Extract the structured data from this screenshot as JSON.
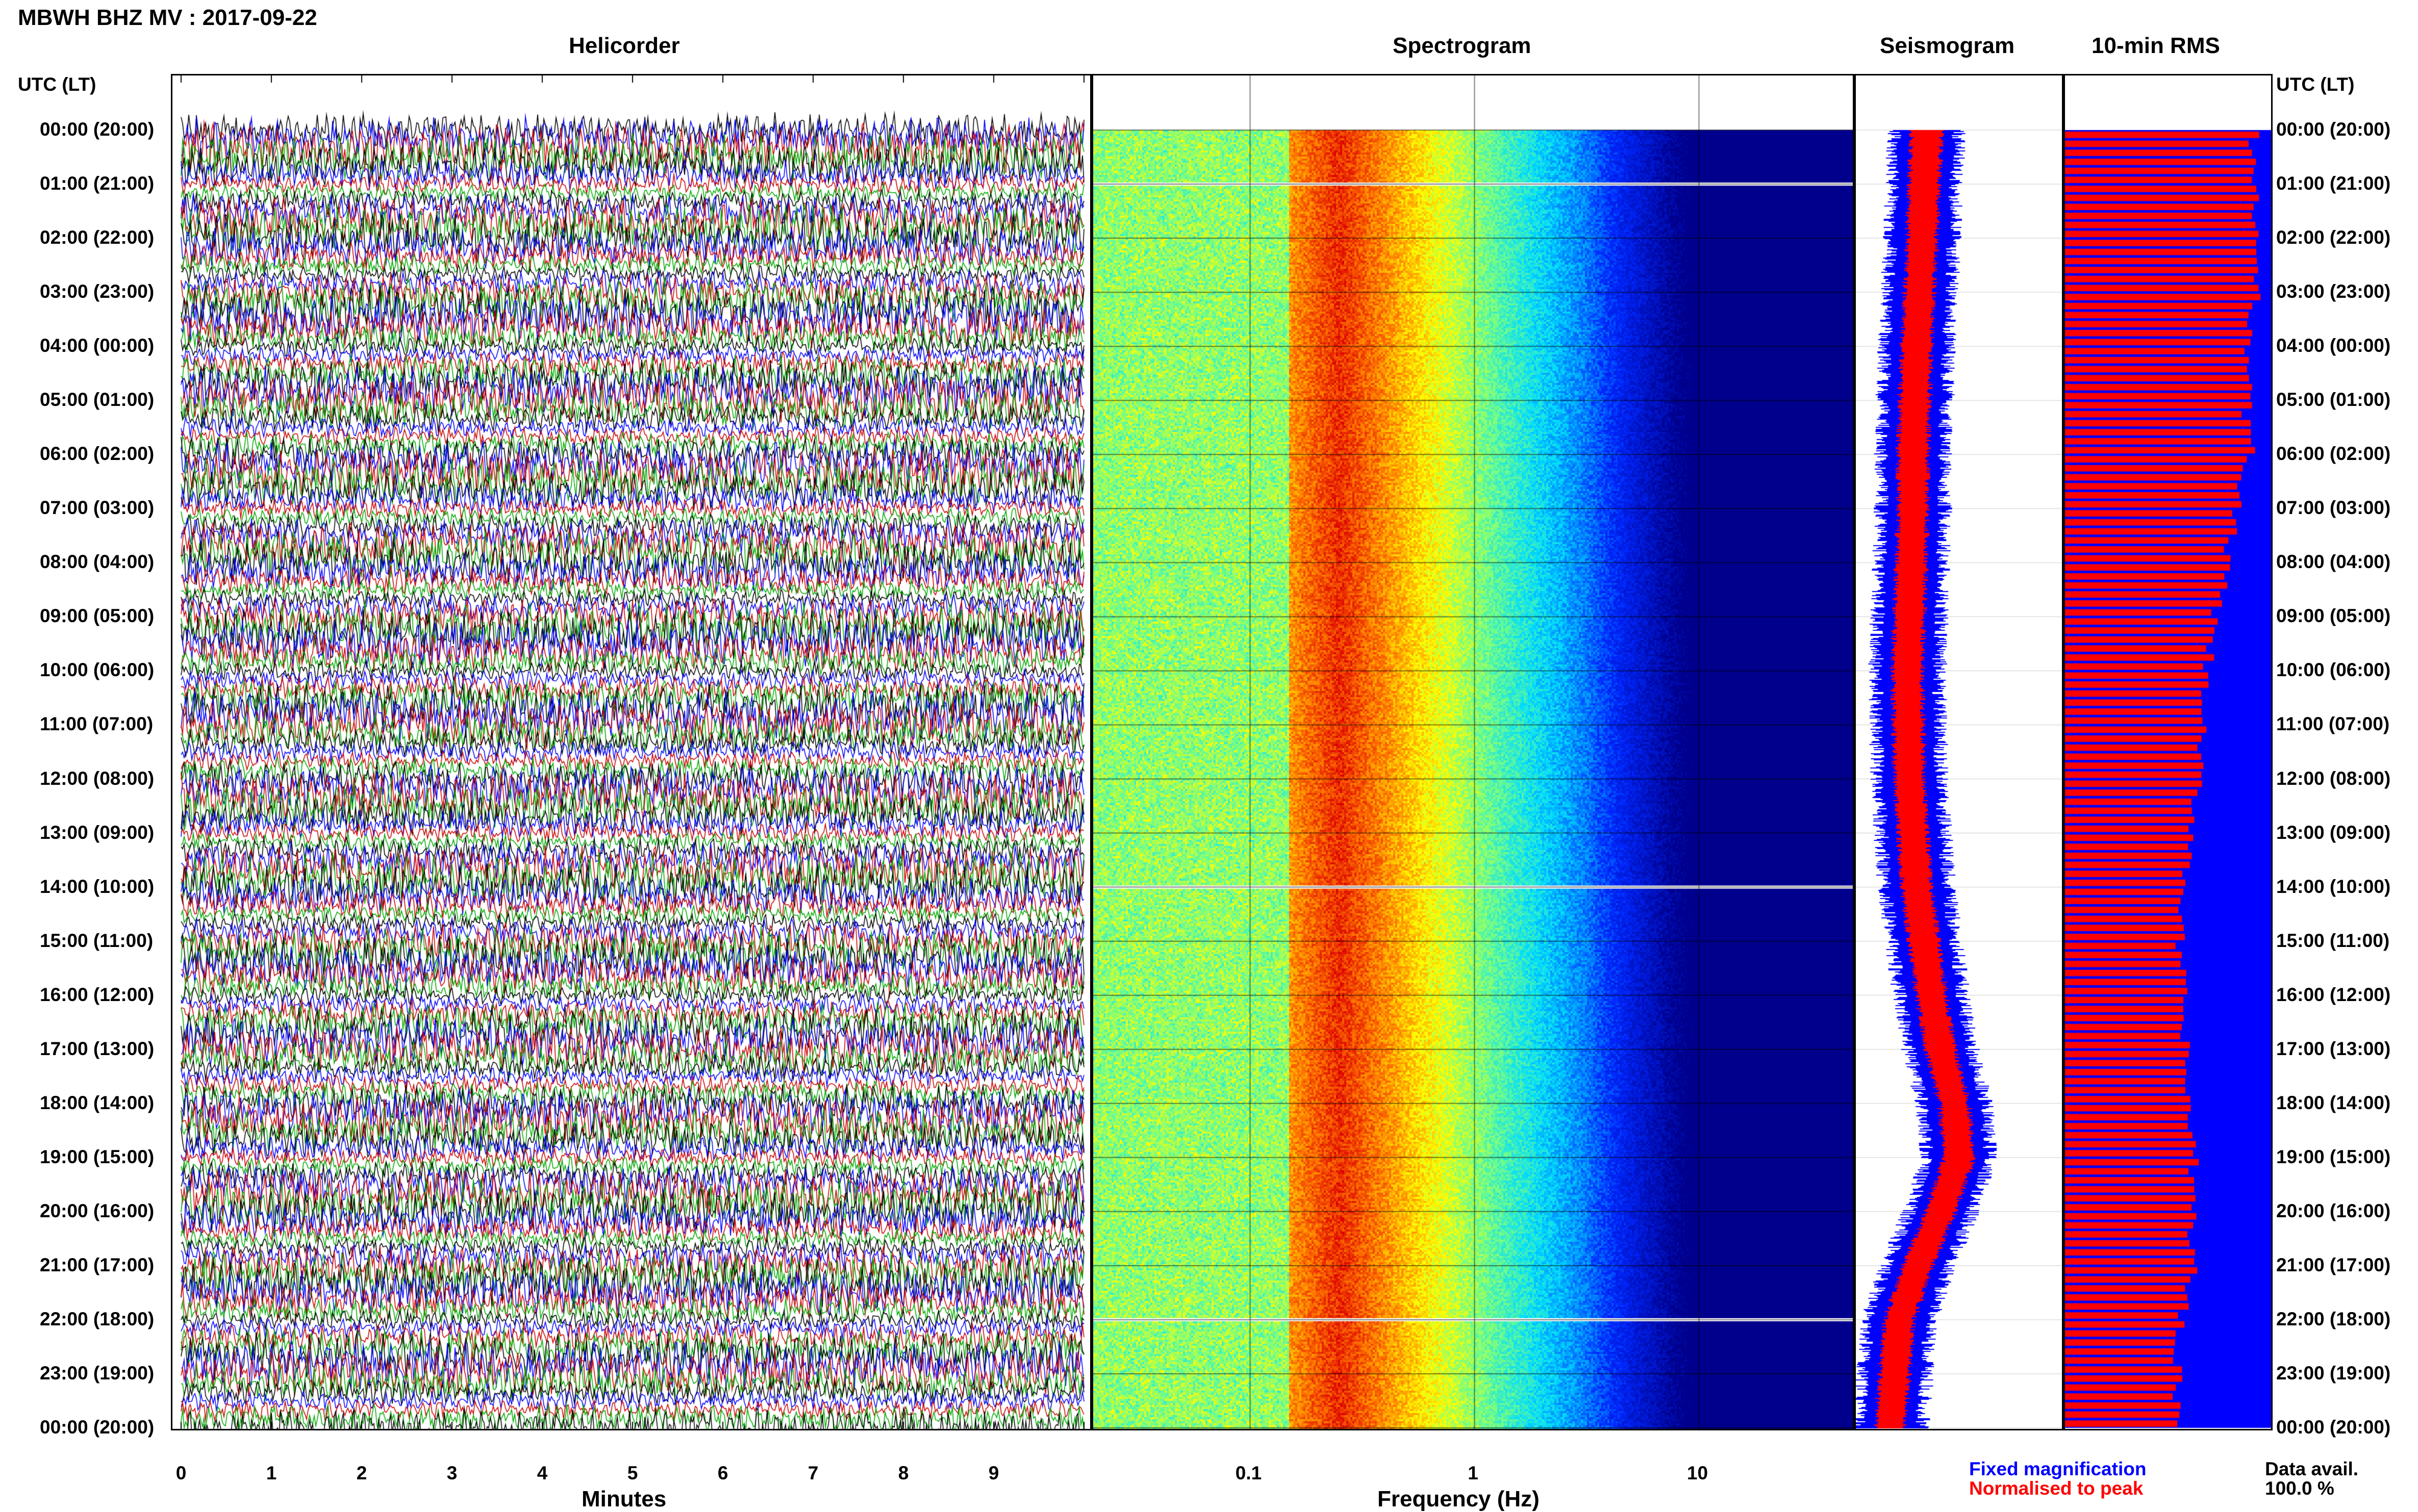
{
  "header": {
    "title": "MBWH BHZ MV : 2017-09-22"
  },
  "panels": {
    "helicorder": "Helicorder",
    "spectrogram": "Spectrogram",
    "seismogram": "Seismogram",
    "rms": "10-min RMS"
  },
  "axis": {
    "utc_label_left": "UTC (LT)",
    "utc_label_right": "UTC (LT)",
    "minutes_label": "Minutes",
    "frequency_label": "Frequency (Hz)",
    "minute_ticks": [
      "0",
      "1",
      "2",
      "3",
      "4",
      "5",
      "6",
      "7",
      "8",
      "9"
    ],
    "frequency_ticks": [
      "0.1",
      "1",
      "10"
    ],
    "time_ticks": [
      "00:00 (20:00)",
      "01:00 (21:00)",
      "02:00 (22:00)",
      "03:00 (23:00)",
      "04:00 (00:00)",
      "05:00 (01:00)",
      "06:00 (02:00)",
      "07:00 (03:00)",
      "08:00 (04:00)",
      "09:00 (05:00)",
      "10:00 (06:00)",
      "11:00 (07:00)",
      "12:00 (08:00)",
      "13:00 (09:00)",
      "14:00 (10:00)",
      "15:00 (11:00)",
      "16:00 (12:00)",
      "17:00 (13:00)",
      "18:00 (14:00)",
      "19:00 (15:00)",
      "20:00 (16:00)",
      "21:00 (17:00)",
      "22:00 (18:00)",
      "23:00 (19:00)",
      "00:00 (20:00)"
    ]
  },
  "legend": {
    "fixed": "Fixed magnification",
    "normalised": "Normalised to peak",
    "fixed_color": "#0000ff",
    "normalised_color": "#ff0000",
    "data_avail_label": "Data avail.",
    "data_avail_value": "100.0 %"
  },
  "chart_data": [
    {
      "type": "line",
      "name": "helicorder",
      "xlabel": "Minutes",
      "xlim": [
        0,
        10
      ],
      "trace_colors": [
        "#000000",
        "#0000ff",
        "#cc0000",
        "#00aa00"
      ],
      "trace_interval_minutes": 10,
      "traces_count": 144
    },
    {
      "type": "heatmap",
      "name": "spectrogram",
      "xlabel": "Frequency (Hz)",
      "xscale": "log",
      "xlim": [
        0.02,
        50
      ],
      "gaps_utc_hours": [
        1.0,
        14.0,
        22.0
      ],
      "colormap": [
        "#00008b",
        "#0000ff",
        "#00ffff",
        "#ffff00",
        "#ff0000"
      ]
    },
    {
      "type": "line",
      "name": "seismogram",
      "series": [
        {
          "name": "Fixed magnification",
          "color": "#0000ff"
        },
        {
          "name": "Normalised to peak",
          "color": "#ff0000"
        }
      ],
      "y_utc_hours": [
        0,
        1,
        2,
        3,
        4,
        5,
        6,
        7,
        8,
        9,
        10,
        11,
        12,
        13,
        14,
        15,
        16,
        17,
        18,
        19,
        20,
        21,
        22,
        23,
        24
      ],
      "relative_amplitude": [
        0.55,
        0.52,
        0.5,
        0.47,
        0.44,
        0.42,
        0.4,
        0.4,
        0.38,
        0.36,
        0.34,
        0.35,
        0.36,
        0.4,
        0.44,
        0.52,
        0.6,
        0.7,
        0.85,
        0.9,
        0.7,
        0.45,
        0.25,
        0.2,
        0.15
      ]
    },
    {
      "type": "bar",
      "name": "10-min RMS",
      "orientation": "horizontal",
      "series": [
        {
          "name": "Fixed magnification",
          "color": "#0000ff"
        },
        {
          "name": "Normalised to peak",
          "color": "#ff0000"
        }
      ],
      "y_utc_hours": [
        0,
        1,
        2,
        3,
        4,
        5,
        6,
        7,
        8,
        9,
        10,
        11,
        12,
        13,
        14,
        15,
        16,
        17,
        18,
        19,
        20,
        21,
        22,
        23,
        24
      ],
      "normalised_rms": [
        0.92,
        0.91,
        0.93,
        0.92,
        0.9,
        0.88,
        0.9,
        0.82,
        0.78,
        0.72,
        0.68,
        0.66,
        0.64,
        0.62,
        0.58,
        0.55,
        0.57,
        0.58,
        0.6,
        0.62,
        0.62,
        0.62,
        0.56,
        0.55,
        0.54
      ]
    }
  ]
}
